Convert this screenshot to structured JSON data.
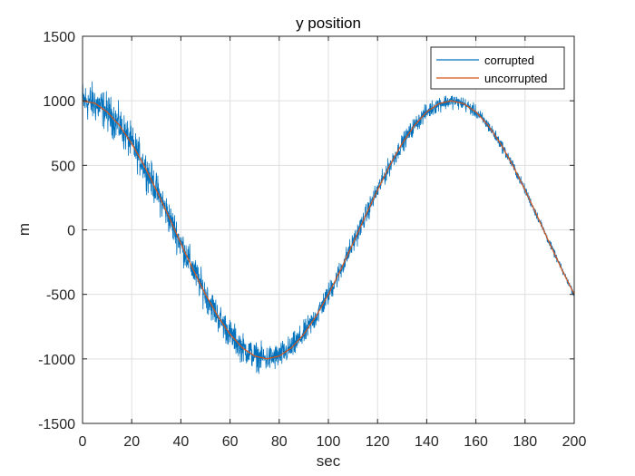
{
  "chart_data": {
    "type": "line",
    "title": "y position",
    "xlabel": "sec",
    "ylabel": "m",
    "xlim": [
      0,
      200
    ],
    "ylim": [
      -1500,
      1500
    ],
    "xticks": [
      0,
      20,
      40,
      60,
      80,
      100,
      120,
      140,
      160,
      180,
      200
    ],
    "yticks": [
      -1500,
      -1000,
      -500,
      0,
      500,
      1000,
      1500
    ],
    "grid": true,
    "legend_position": "top-right",
    "colors": {
      "corrupted": "#0072BD",
      "uncorrupted": "#D95319"
    },
    "series": [
      {
        "name": "corrupted",
        "x": [
          0,
          5,
          10,
          15,
          20,
          25,
          30,
          35,
          40,
          45,
          50,
          55,
          60,
          65,
          70,
          75,
          80,
          85,
          90,
          95,
          100,
          105,
          110,
          115,
          120,
          125,
          130,
          135,
          140,
          145,
          150,
          155,
          160,
          165,
          170,
          175,
          180,
          185,
          190,
          195,
          200
        ],
        "values": [
          1000,
          981,
          914,
          809,
          669,
          500,
          309,
          105,
          -105,
          -309,
          -500,
          -669,
          -809,
          -914,
          -978,
          -1000,
          -978,
          -914,
          -809,
          -669,
          -500,
          -309,
          -105,
          105,
          309,
          500,
          669,
          809,
          914,
          978,
          1000,
          978,
          914,
          809,
          669,
          500,
          309,
          105,
          -105,
          -309,
          -500
        ],
        "noise_amplitude_start": 130,
        "noise_amplitude_end": 20
      },
      {
        "name": "uncorrupted",
        "x": [
          0,
          5,
          10,
          15,
          20,
          25,
          30,
          35,
          40,
          45,
          50,
          55,
          60,
          65,
          70,
          75,
          80,
          85,
          90,
          95,
          100,
          105,
          110,
          115,
          120,
          125,
          130,
          135,
          140,
          145,
          150,
          155,
          160,
          165,
          170,
          175,
          180,
          185,
          190,
          195,
          200
        ],
        "values": [
          1000,
          981,
          914,
          809,
          669,
          500,
          309,
          105,
          -105,
          -309,
          -500,
          -669,
          -809,
          -914,
          -978,
          -1000,
          -978,
          -914,
          -809,
          -669,
          -500,
          -309,
          -105,
          105,
          309,
          500,
          669,
          809,
          914,
          978,
          1000,
          978,
          914,
          809,
          669,
          500,
          309,
          105,
          -105,
          -309,
          -500
        ]
      }
    ]
  }
}
